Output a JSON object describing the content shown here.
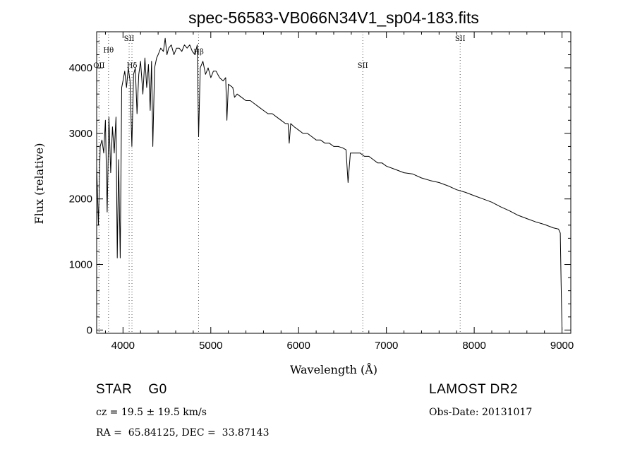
{
  "chart_data": {
    "type": "line",
    "title": "spec-56583-VB066N34V1_sp04-183.fits",
    "xlabel": "Wavelength (Å)",
    "ylabel": "Flux (relative)",
    "xlim": [
      3700,
      9100
    ],
    "ylim": [
      -50,
      4550
    ],
    "x_ticks": [
      {
        "value": 4000,
        "label": "4000"
      },
      {
        "value": 5000,
        "label": "5000"
      },
      {
        "value": 6000,
        "label": "6000"
      },
      {
        "value": 7000,
        "label": "7000"
      },
      {
        "value": 8000,
        "label": "8000"
      },
      {
        "value": 9000,
        "label": "9000"
      }
    ],
    "y_ticks": [
      {
        "value": 0,
        "label": "0"
      },
      {
        "value": 1000,
        "label": "1000"
      },
      {
        "value": 2000,
        "label": "2000"
      },
      {
        "value": 3000,
        "label": "3000"
      },
      {
        "value": 4000,
        "label": "4000"
      }
    ],
    "line_markers": [
      {
        "wavelength": 3727,
        "label": "OII",
        "label_y": 4000
      },
      {
        "wavelength": 3835,
        "label": "Hθ",
        "label_y": 4230
      },
      {
        "wavelength": 4070,
        "label": "SII",
        "label_y": 4410
      },
      {
        "wavelength": 4102,
        "label": "Hδ",
        "label_y": 4000
      },
      {
        "wavelength": 4861,
        "label": "Hβ",
        "label_y": 4210
      },
      {
        "wavelength": 6731,
        "label": "SII",
        "label_y": 4000
      },
      {
        "wavelength": 7840,
        "label": "SII",
        "label_y": 4410
      }
    ],
    "series": [
      {
        "name": "flux",
        "x": [
          3700,
          3720,
          3740,
          3760,
          3780,
          3800,
          3820,
          3840,
          3860,
          3880,
          3900,
          3920,
          3935,
          3950,
          3968,
          3985,
          4000,
          4020,
          4040,
          4060,
          4080,
          4101,
          4120,
          4140,
          4160,
          4180,
          4200,
          4226,
          4250,
          4270,
          4290,
          4310,
          4325,
          4340,
          4360,
          4383,
          4400,
          4430,
          4460,
          4480,
          4500,
          4520,
          4550,
          4580,
          4610,
          4640,
          4670,
          4700,
          4730,
          4760,
          4790,
          4820,
          4845,
          4861,
          4880,
          4910,
          4940,
          4970,
          5000,
          5030,
          5060,
          5100,
          5140,
          5170,
          5183,
          5200,
          5250,
          5270,
          5300,
          5350,
          5400,
          5450,
          5500,
          5550,
          5600,
          5650,
          5700,
          5750,
          5800,
          5850,
          5880,
          5893,
          5910,
          5950,
          6000,
          6050,
          6100,
          6150,
          6200,
          6250,
          6300,
          6350,
          6400,
          6450,
          6500,
          6540,
          6563,
          6590,
          6650,
          6700,
          6750,
          6800,
          6850,
          6900,
          6950,
          7000,
          7100,
          7200,
          7300,
          7400,
          7500,
          7600,
          7700,
          7800,
          7900,
          8000,
          8100,
          8200,
          8300,
          8400,
          8500,
          8600,
          8700,
          8800,
          8900,
          8960,
          8980,
          8990,
          9000
        ],
        "values": [
          2500,
          1600,
          2800,
          2900,
          2700,
          3200,
          1800,
          3250,
          2400,
          3100,
          2700,
          3250,
          1100,
          2600,
          1100,
          3700,
          3800,
          3950,
          3700,
          4000,
          3800,
          2800,
          3900,
          4000,
          3300,
          3900,
          4100,
          3600,
          4150,
          3700,
          4050,
          3350,
          4100,
          2800,
          4000,
          4150,
          4200,
          4300,
          4250,
          4450,
          4200,
          4300,
          4350,
          4200,
          4300,
          4300,
          4250,
          4350,
          4300,
          4350,
          4250,
          4200,
          4350,
          2950,
          4000,
          4100,
          3900,
          4000,
          3850,
          3950,
          3950,
          3850,
          3800,
          3850,
          3200,
          3750,
          3700,
          3550,
          3600,
          3550,
          3500,
          3500,
          3450,
          3400,
          3350,
          3300,
          3300,
          3250,
          3200,
          3150,
          3150,
          2850,
          3150,
          3100,
          3050,
          3000,
          3000,
          2950,
          2900,
          2900,
          2850,
          2850,
          2800,
          2800,
          2780,
          2750,
          2250,
          2700,
          2700,
          2700,
          2650,
          2650,
          2600,
          2550,
          2550,
          2500,
          2450,
          2400,
          2380,
          2320,
          2280,
          2250,
          2200,
          2140,
          2100,
          2050,
          2000,
          1950,
          1880,
          1820,
          1750,
          1700,
          1650,
          1610,
          1560,
          1540,
          1480,
          700,
          0
        ]
      }
    ]
  },
  "info": {
    "object_class": "STAR    G0",
    "survey": "LAMOST DR2",
    "redshift": "cz = 19.5 ± 19.5 km/s",
    "obs_date": "Obs-Date: 20131017",
    "coords": "RA =  65.84125, DEC =  33.87143"
  }
}
